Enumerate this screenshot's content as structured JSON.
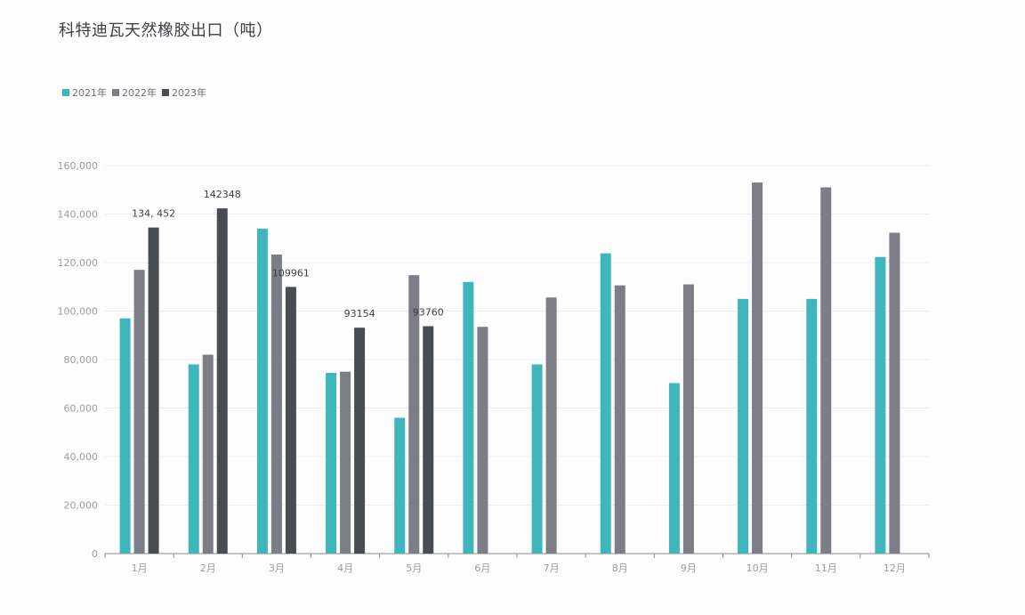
{
  "title": "科特迪瓦天然橡胶出口（吨）",
  "colors": {
    "2021年": "#3fb6bb",
    "2022年": "#7c7d87",
    "2023年": "#4a4c53",
    "grid": "#eeeeee",
    "axis": "#8a8c92"
  },
  "chart_data": {
    "type": "bar",
    "title": "科特迪瓦天然橡胶出口（吨）",
    "xlabel": "",
    "ylabel": "",
    "ylim": [
      0,
      160000
    ],
    "yticks": [
      "0",
      "20,000",
      "40,000",
      "60,000",
      "80,000",
      "100,000",
      "120,000",
      "140,000",
      "160,000"
    ],
    "grid": true,
    "legend_position": "top-left",
    "categories": [
      "1月",
      "2月",
      "3月",
      "4月",
      "5月",
      "6月",
      "7月",
      "8月",
      "9月",
      "10月",
      "11月",
      "12月"
    ],
    "series": [
      {
        "name": "2021年",
        "values": [
          97000,
          78000,
          134000,
          74500,
          56000,
          112000,
          78000,
          123800,
          70300,
          105000,
          105000,
          122300
        ]
      },
      {
        "name": "2022年",
        "values": [
          117000,
          82000,
          123300,
          75000,
          114800,
          93500,
          105600,
          110600,
          111000,
          153000,
          151000,
          132300
        ]
      },
      {
        "name": "2023年",
        "values": [
          134452,
          142348,
          109961,
          93154,
          93760,
          null,
          null,
          null,
          null,
          null,
          null,
          null
        ]
      }
    ],
    "data_labels": [
      {
        "series": "2023年",
        "category": "1月",
        "text": "134, 452"
      },
      {
        "series": "2023年",
        "category": "2月",
        "text": "142348"
      },
      {
        "series": "2023年",
        "category": "3月",
        "text": "109961"
      },
      {
        "series": "2023年",
        "category": "4月",
        "text": "93154"
      },
      {
        "series": "2023年",
        "category": "5月",
        "text": "93760"
      }
    ]
  }
}
